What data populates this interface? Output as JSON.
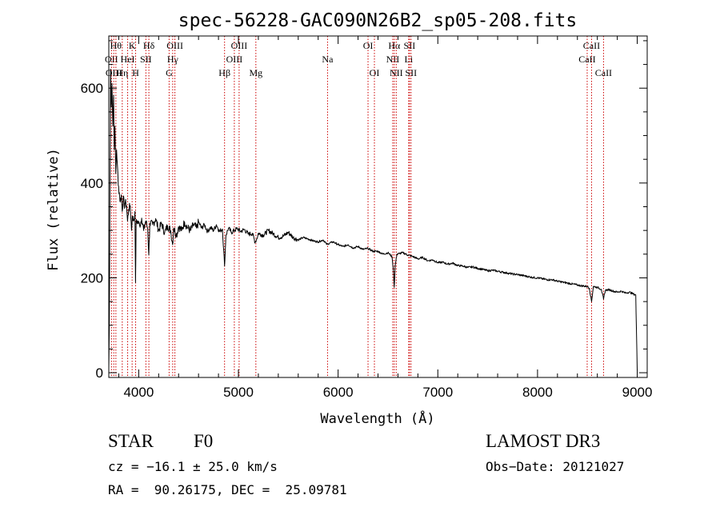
{
  "chart_data": {
    "type": "line",
    "title": "spec-56228-GAC090N26B2_sp05-208.fits",
    "xlabel": "Wavelength (Å)",
    "ylabel": "Flux (relative)",
    "xlim": [
      3700,
      9100
    ],
    "ylim": [
      -10,
      710
    ],
    "xticks": [
      4000,
      5000,
      6000,
      7000,
      8000,
      9000
    ],
    "xtick_labels": [
      "4000",
      "5000",
      "6000",
      "7000",
      "8000",
      "9000"
    ],
    "yticks": [
      0,
      200,
      400,
      600
    ],
    "ytick_labels": [
      "0",
      "200",
      "400",
      "600"
    ],
    "grid": false,
    "legend": "none",
    "series": [
      {
        "name": "flux",
        "points": [
          [
            3700,
            10
          ],
          [
            3705,
            95
          ],
          [
            3712,
            400
          ],
          [
            3718,
            640
          ],
          [
            3725,
            560
          ],
          [
            3732,
            610
          ],
          [
            3740,
            520
          ],
          [
            3748,
            585
          ],
          [
            3755,
            470
          ],
          [
            3762,
            520
          ],
          [
            3770,
            420
          ],
          [
            3778,
            470
          ],
          [
            3786,
            440
          ],
          [
            3795,
            395
          ],
          [
            3805,
            380
          ],
          [
            3815,
            360
          ],
          [
            3825,
            375
          ],
          [
            3835,
            340
          ],
          [
            3845,
            372
          ],
          [
            3855,
            350
          ],
          [
            3865,
            360
          ],
          [
            3878,
            352
          ],
          [
            3888,
            320
          ],
          [
            3900,
            345
          ],
          [
            3915,
            352
          ],
          [
            3928,
            300
          ],
          [
            3935,
            330
          ],
          [
            3950,
            320
          ],
          [
            3962,
            340
          ],
          [
            3968,
            190
          ],
          [
            3974,
            315
          ],
          [
            3990,
            320
          ],
          [
            4010,
            310
          ],
          [
            4030,
            326
          ],
          [
            4050,
            300
          ],
          [
            4070,
            320
          ],
          [
            4090,
            305
          ],
          [
            4101,
            248
          ],
          [
            4112,
            315
          ],
          [
            4140,
            312
          ],
          [
            4170,
            325
          ],
          [
            4200,
            300
          ],
          [
            4230,
            315
          ],
          [
            4260,
            295
          ],
          [
            4290,
            310
          ],
          [
            4320,
            300
          ],
          [
            4340,
            270
          ],
          [
            4350,
            305
          ],
          [
            4380,
            290
          ],
          [
            4400,
            308
          ],
          [
            4430,
            300
          ],
          [
            4460,
            318
          ],
          [
            4490,
            305
          ],
          [
            4520,
            300
          ],
          [
            4550,
            312
          ],
          [
            4580,
            305
          ],
          [
            4600,
            318
          ],
          [
            4630,
            305
          ],
          [
            4660,
            312
          ],
          [
            4690,
            298
          ],
          [
            4720,
            306
          ],
          [
            4750,
            300
          ],
          [
            4780,
            312
          ],
          [
            4810,
            298
          ],
          [
            4840,
            303
          ],
          [
            4861,
            225
          ],
          [
            4875,
            290
          ],
          [
            4900,
            305
          ],
          [
            4930,
            296
          ],
          [
            4960,
            300
          ],
          [
            4990,
            304
          ],
          [
            5020,
            298
          ],
          [
            5060,
            302
          ],
          [
            5100,
            292
          ],
          [
            5140,
            294
          ],
          [
            5167,
            275
          ],
          [
            5184,
            282
          ],
          [
            5200,
            294
          ],
          [
            5250,
            290
          ],
          [
            5300,
            300
          ],
          [
            5350,
            293
          ],
          [
            5400,
            285
          ],
          [
            5450,
            288
          ],
          [
            5500,
            296
          ],
          [
            5550,
            285
          ],
          [
            5600,
            280
          ],
          [
            5650,
            285
          ],
          [
            5700,
            282
          ],
          [
            5750,
            278
          ],
          [
            5800,
            276
          ],
          [
            5850,
            280
          ],
          [
            5890,
            270
          ],
          [
            5900,
            272
          ],
          [
            5950,
            276
          ],
          [
            6000,
            270
          ],
          [
            6050,
            266
          ],
          [
            6100,
            270
          ],
          [
            6150,
            263
          ],
          [
            6200,
            266
          ],
          [
            6250,
            260
          ],
          [
            6300,
            262
          ],
          [
            6350,
            256
          ],
          [
            6400,
            256
          ],
          [
            6450,
            250
          ],
          [
            6500,
            253
          ],
          [
            6540,
            245
          ],
          [
            6555,
            215
          ],
          [
            6563,
            180
          ],
          [
            6572,
            225
          ],
          [
            6590,
            250
          ],
          [
            6650,
            253
          ],
          [
            6700,
            248
          ],
          [
            6750,
            245
          ],
          [
            6800,
            240
          ],
          [
            6850,
            243
          ],
          [
            6900,
            236
          ],
          [
            6950,
            238
          ],
          [
            7000,
            232
          ],
          [
            7050,
            233
          ],
          [
            7100,
            229
          ],
          [
            7150,
            231
          ],
          [
            7200,
            226
          ],
          [
            7250,
            225
          ],
          [
            7300,
            222
          ],
          [
            7350,
            223
          ],
          [
            7400,
            220
          ],
          [
            7450,
            218
          ],
          [
            7500,
            215
          ],
          [
            7550,
            216
          ],
          [
            7600,
            214
          ],
          [
            7650,
            212
          ],
          [
            7700,
            210
          ],
          [
            7750,
            208
          ],
          [
            7800,
            207
          ],
          [
            7850,
            205
          ],
          [
            7900,
            203
          ],
          [
            7950,
            201
          ],
          [
            8000,
            200
          ],
          [
            8050,
            198
          ],
          [
            8100,
            196
          ],
          [
            8150,
            196
          ],
          [
            8200,
            193
          ],
          [
            8250,
            191
          ],
          [
            8300,
            189
          ],
          [
            8350,
            187
          ],
          [
            8400,
            185
          ],
          [
            8450,
            183
          ],
          [
            8500,
            182
          ],
          [
            8520,
            178
          ],
          [
            8542,
            150
          ],
          [
            8560,
            182
          ],
          [
            8600,
            180
          ],
          [
            8640,
            176
          ],
          [
            8662,
            155
          ],
          [
            8680,
            174
          ],
          [
            8720,
            175
          ],
          [
            8760,
            172
          ],
          [
            8800,
            170
          ],
          [
            8840,
            172
          ],
          [
            8880,
            168
          ],
          [
            8920,
            170
          ],
          [
            8960,
            166
          ],
          [
            8985,
            164
          ],
          [
            9000,
            5
          ]
        ]
      }
    ],
    "line_markers": [
      {
        "label": "OII",
        "x": 3727,
        "row": 1
      },
      {
        "label": "OIII",
        "x": 3750,
        "row": 2
      },
      {
        "label": "Hθ",
        "x": 3771,
        "row": 0
      },
      {
        "label": "Hη",
        "x": 3835,
        "row": 2
      },
      {
        "label": "HeI",
        "x": 3889,
        "row": 1
      },
      {
        "label": "K",
        "x": 3934,
        "row": 0
      },
      {
        "label": "H",
        "x": 3969,
        "row": 2
      },
      {
        "label": "SII",
        "x": 4072,
        "row": 1
      },
      {
        "label": "Hδ",
        "x": 4102,
        "row": 0
      },
      {
        "label": "G",
        "x": 4305,
        "row": 2
      },
      {
        "label": "Hγ",
        "x": 4341,
        "row": 1
      },
      {
        "label": "OIII",
        "x": 4363,
        "row": 0
      },
      {
        "label": "Hβ",
        "x": 4861,
        "row": 2
      },
      {
        "label": "OIII",
        "x": 4959,
        "row": 1
      },
      {
        "label": "OIII",
        "x": 5007,
        "row": 0
      },
      {
        "label": "Mg",
        "x": 5175,
        "row": 2
      },
      {
        "label": "Na",
        "x": 5894,
        "row": 1
      },
      {
        "label": "OI",
        "x": 6300,
        "row": 0
      },
      {
        "label": "OI",
        "x": 6364,
        "row": 2
      },
      {
        "label": "NII",
        "x": 6548,
        "row": 1
      },
      {
        "label": "Hα",
        "x": 6563,
        "row": 0
      },
      {
        "label": "NII",
        "x": 6583,
        "row": 2
      },
      {
        "label": "Li",
        "x": 6708,
        "row": 1
      },
      {
        "label": "SII",
        "x": 6716,
        "row": 0
      },
      {
        "label": "SII",
        "x": 6731,
        "row": 2
      },
      {
        "label": "CaII",
        "x": 8498,
        "row": 1
      },
      {
        "label": "CaII",
        "x": 8542,
        "row": 0
      },
      {
        "label": "CaII",
        "x": 8662,
        "row": 2
      }
    ],
    "colors": {
      "spectrum": "#000000",
      "markers": "#cc0000",
      "axes": "#000000"
    }
  },
  "info": {
    "class": "STAR",
    "subclass": "F0",
    "survey": "LAMOST DR3",
    "redshift": "cz = −16.1 ± 25.0 km/s",
    "obs_date": "Obs−Date: 20121027",
    "coords": "RA =  90.26175, DEC =  25.09781"
  }
}
